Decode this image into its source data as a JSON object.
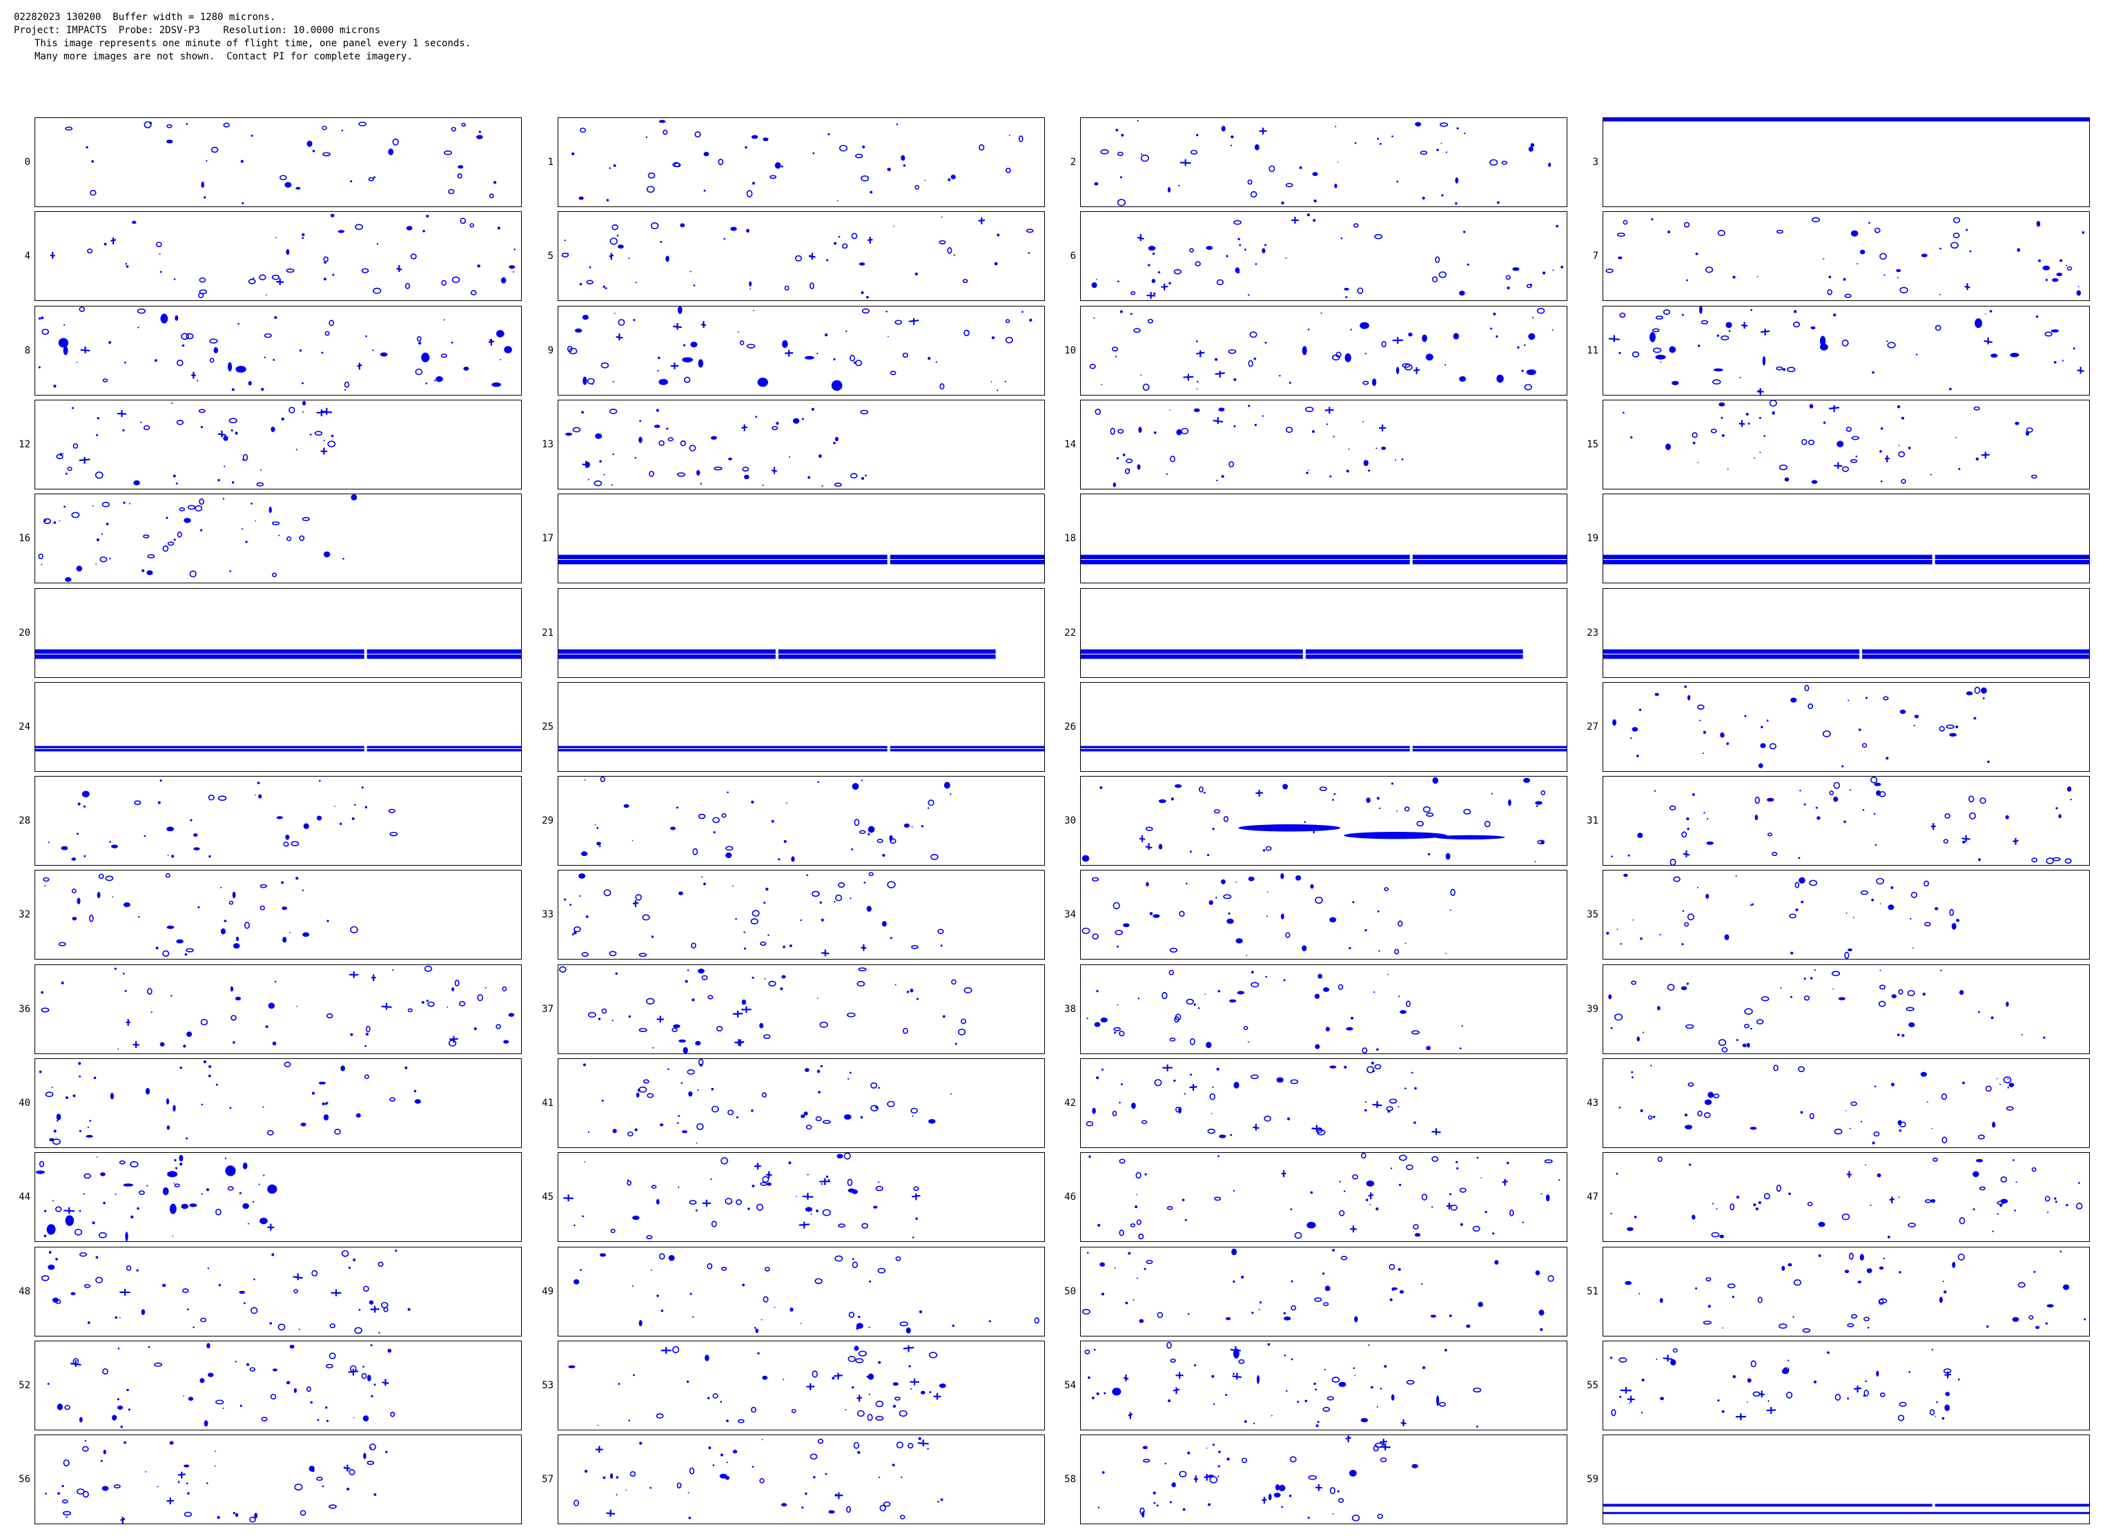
{
  "header": {
    "line1": "02282023 130200  Buffer width = 1280 microns.",
    "line2": "Project: IMPACTS  Probe: 2DSV-P3    Resolution: 10.0000 microns",
    "line3": "This image represents one minute of flight time, one panel every 1 seconds.",
    "line4": "Many more images are not shown.  Contact PI for complete imagery."
  },
  "colors": {
    "particle": "#0000ee",
    "border": "#000000",
    "background": "#ffffff"
  },
  "panels": [
    {
      "label": "0",
      "type": "sparse",
      "density": 0.3
    },
    {
      "label": "1",
      "type": "sparse",
      "density": 0.35
    },
    {
      "label": "2",
      "type": "mixed",
      "density": 0.5
    },
    {
      "label": "3",
      "type": "top-band"
    },
    {
      "label": "4",
      "type": "mixed",
      "density": 0.45
    },
    {
      "label": "5",
      "type": "mixed",
      "density": 0.45
    },
    {
      "label": "6",
      "type": "mixed",
      "density": 0.5
    },
    {
      "label": "7",
      "type": "mixed",
      "density": 0.45
    },
    {
      "label": "8",
      "type": "dense",
      "density": 0.65
    },
    {
      "label": "9",
      "type": "dense",
      "density": 0.6
    },
    {
      "label": "10",
      "type": "dense",
      "density": 0.6
    },
    {
      "label": "11",
      "type": "dense",
      "density": 0.55
    },
    {
      "label": "12",
      "type": "mixed",
      "density": 0.4,
      "extent": 0.62
    },
    {
      "label": "13",
      "type": "mixed",
      "density": 0.45,
      "extent": 0.65
    },
    {
      "label": "14",
      "type": "mixed",
      "density": 0.4,
      "extent": 0.68
    },
    {
      "label": "15",
      "type": "mixed",
      "density": 0.5,
      "extent": 0.9
    },
    {
      "label": "16",
      "type": "mixed",
      "density": 0.45,
      "extent": 0.7
    },
    {
      "label": "17",
      "type": "band",
      "fill": 1.0,
      "gap": 0.68
    },
    {
      "label": "18",
      "type": "band",
      "fill": 1.0,
      "gap": 0.68
    },
    {
      "label": "19",
      "type": "band",
      "fill": 1.0,
      "gap": 0.68
    },
    {
      "label": "20",
      "type": "band",
      "fill": 1.0,
      "gap": 0.68
    },
    {
      "label": "21",
      "type": "band",
      "fill": 0.9,
      "gap": 0.45
    },
    {
      "label": "22",
      "type": "band",
      "fill": 0.91,
      "gap": 0.46
    },
    {
      "label": "23",
      "type": "band",
      "fill": 1.0,
      "gap": 0.53
    },
    {
      "label": "24",
      "type": "band-thin",
      "fill": 1.0,
      "gap": 0.68
    },
    {
      "label": "25",
      "type": "band-thin",
      "fill": 1.0,
      "gap": 0.68
    },
    {
      "label": "26",
      "type": "band-thin",
      "fill": 1.0,
      "gap": 0.68
    },
    {
      "label": "27",
      "type": "sparse",
      "density": 0.35,
      "extent": 0.85
    },
    {
      "label": "28",
      "type": "sparse",
      "density": 0.3,
      "extent": 0.75
    },
    {
      "label": "29",
      "type": "sparse",
      "density": 0.35,
      "extent": 0.85
    },
    {
      "label": "30",
      "type": "streaks",
      "density": 0.4
    },
    {
      "label": "31",
      "type": "mixed",
      "density": 0.5,
      "extent": 0.98
    },
    {
      "label": "32",
      "type": "sparse",
      "density": 0.3,
      "extent": 0.7
    },
    {
      "label": "33",
      "type": "mixed",
      "density": 0.45,
      "extent": 0.8
    },
    {
      "label": "34",
      "type": "sparse",
      "density": 0.35,
      "extent": 0.8
    },
    {
      "label": "35",
      "type": "sparse",
      "density": 0.35,
      "extent": 0.75
    },
    {
      "label": "36",
      "type": "mixed",
      "density": 0.45
    },
    {
      "label": "37",
      "type": "mixed",
      "density": 0.45,
      "extent": 0.9
    },
    {
      "label": "38",
      "type": "sparse",
      "density": 0.4,
      "extent": 0.8
    },
    {
      "label": "39",
      "type": "sparse",
      "density": 0.4,
      "extent": 0.95
    },
    {
      "label": "40",
      "type": "mixed",
      "density": 0.4,
      "extent": 0.8
    },
    {
      "label": "41",
      "type": "mixed",
      "density": 0.45,
      "extent": 0.82
    },
    {
      "label": "42",
      "type": "mixed",
      "density": 0.45,
      "extent": 0.75
    },
    {
      "label": "43",
      "type": "sparse",
      "density": 0.4,
      "extent": 0.85
    },
    {
      "label": "44",
      "type": "dense",
      "density": 0.5,
      "extent": 0.5
    },
    {
      "label": "45",
      "type": "mixed",
      "density": 0.5,
      "extent": 0.75
    },
    {
      "label": "46",
      "type": "dense",
      "density": 0.6
    },
    {
      "label": "47",
      "type": "mixed",
      "density": 0.5
    },
    {
      "label": "48",
      "type": "mixed",
      "density": 0.45,
      "extent": 0.8
    },
    {
      "label": "49",
      "type": "sparse",
      "density": 0.3
    },
    {
      "label": "50",
      "type": "sparse",
      "density": 0.4
    },
    {
      "label": "51",
      "type": "sparse",
      "density": 0.4
    },
    {
      "label": "52",
      "type": "mixed",
      "density": 0.5,
      "extent": 0.75
    },
    {
      "label": "53",
      "type": "mixed",
      "density": 0.45,
      "extent": 0.82
    },
    {
      "label": "54",
      "type": "dense",
      "density": 0.55,
      "extent": 0.85
    },
    {
      "label": "55",
      "type": "mixed",
      "density": 0.45,
      "extent": 0.75
    },
    {
      "label": "56",
      "type": "mixed",
      "density": 0.45,
      "extent": 0.8
    },
    {
      "label": "57",
      "type": "mixed",
      "density": 0.45,
      "extent": 0.8
    },
    {
      "label": "58",
      "type": "mixed",
      "density": 0.45,
      "extent": 0.7
    },
    {
      "label": "59",
      "type": "bottom-band",
      "gap": 0.68
    }
  ]
}
